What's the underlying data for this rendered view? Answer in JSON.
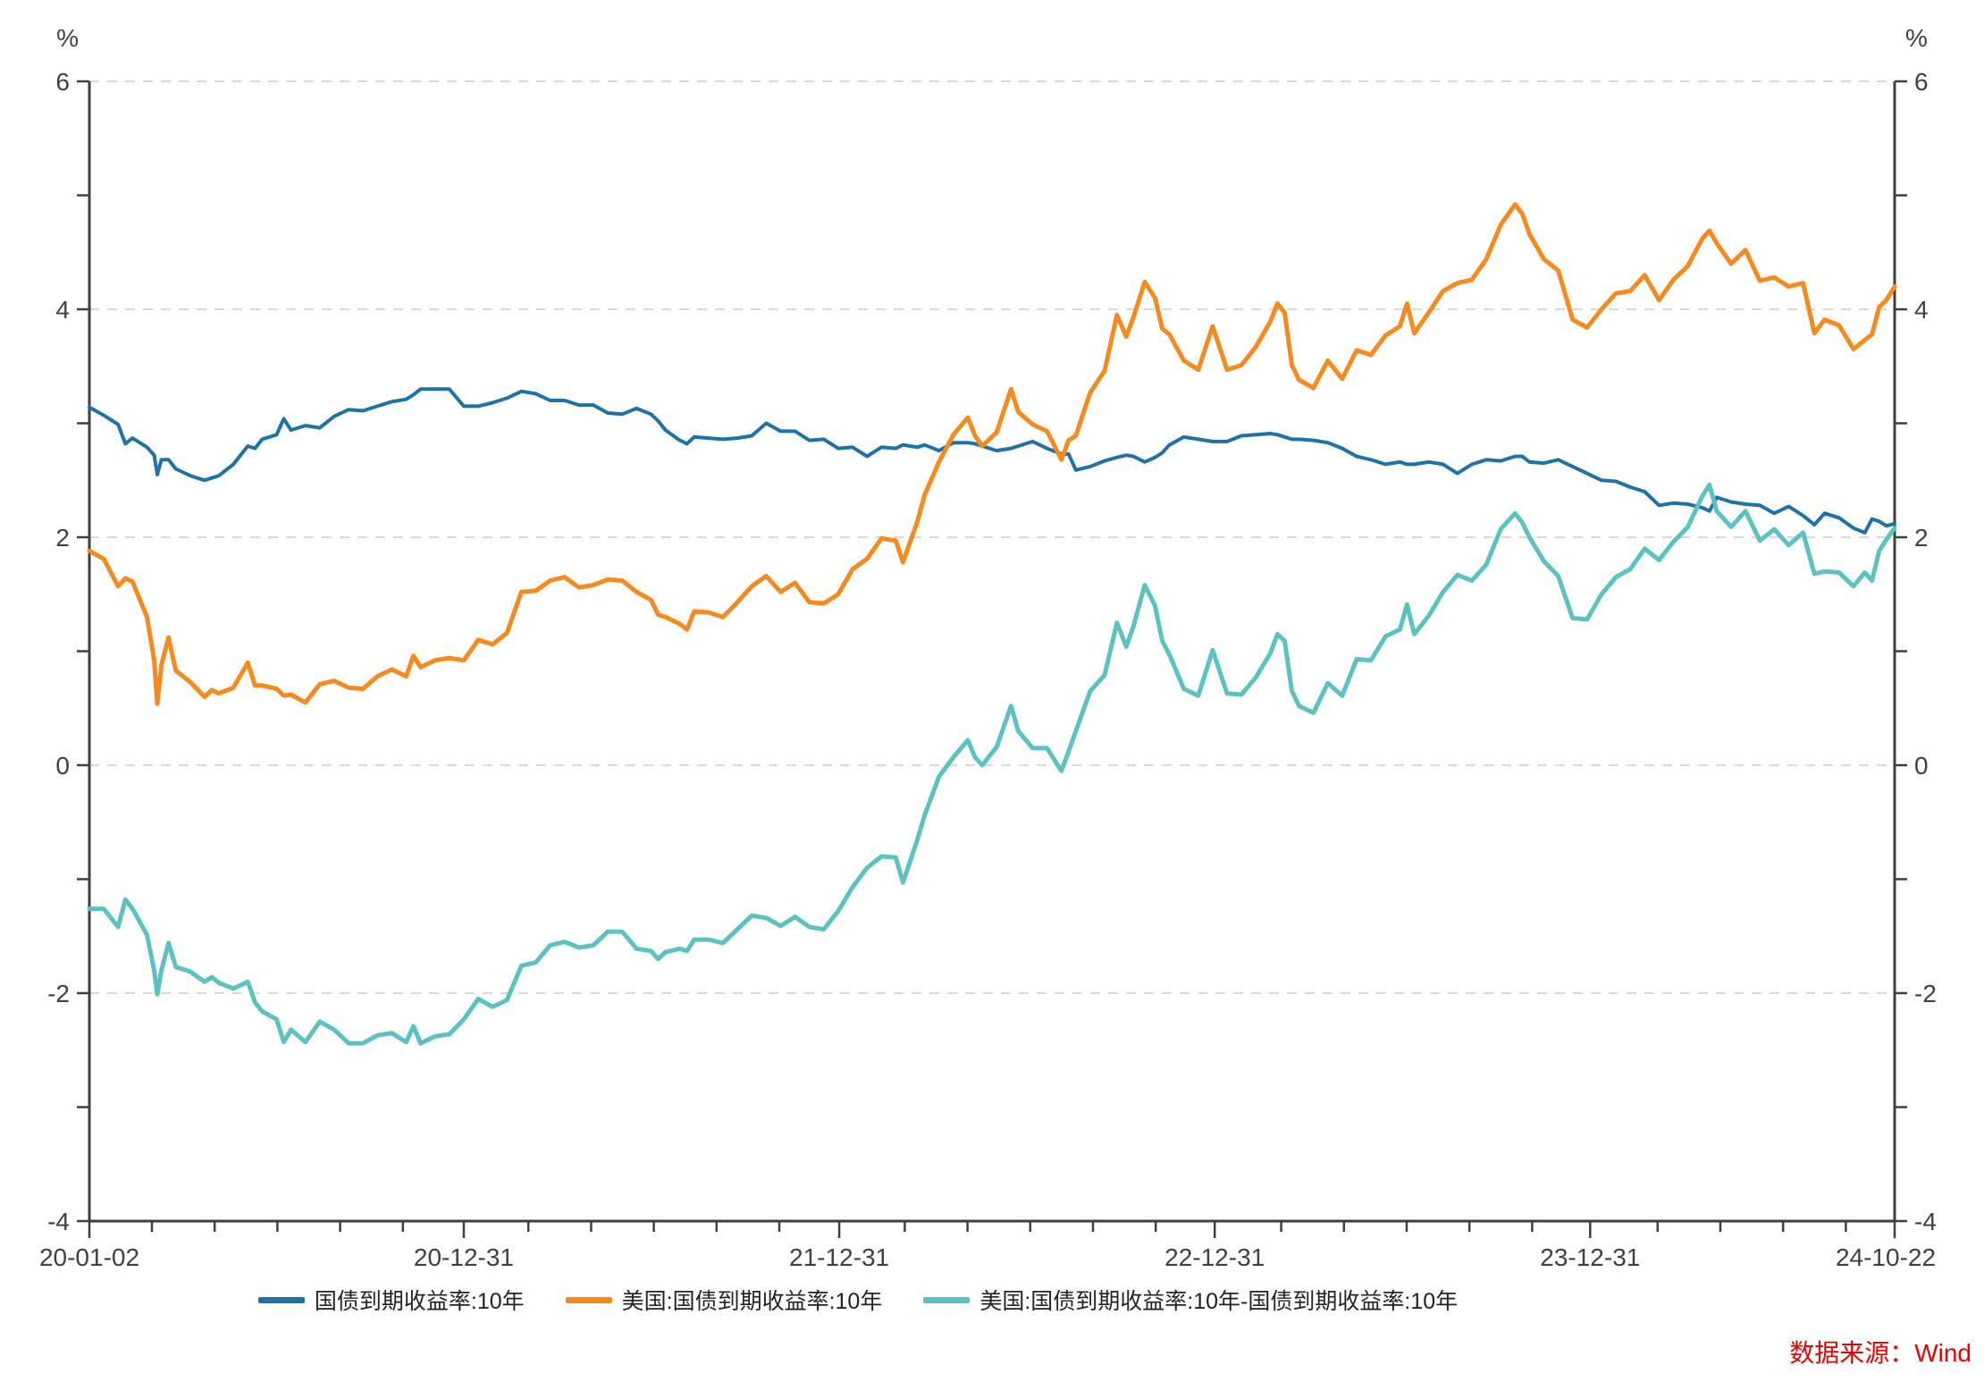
{
  "unit_label_left": "%",
  "unit_label_right": "%",
  "source_note": "数据来源：Wind",
  "chart_data": {
    "type": "line",
    "title": "",
    "ylabel": "%",
    "ylim": [
      -4,
      6
    ],
    "y_major_ticks": [
      6,
      4,
      2,
      0,
      -2,
      -4
    ],
    "grid": "horizontal dashed at major ticks",
    "legend_position": "bottom-center",
    "x_tick_labels": [
      "20-01-02",
      "20-12-31",
      "21-12-31",
      "22-12-31",
      "23-12-31",
      "24-10-22"
    ],
    "x_tick_days": [
      0,
      364,
      729,
      1094,
      1459,
      1755
    ],
    "x_domain_days": [
      0,
      1755
    ],
    "days": [
      0,
      14,
      28,
      35,
      42,
      56,
      63,
      66,
      70,
      77,
      84,
      98,
      112,
      119,
      126,
      140,
      154,
      161,
      168,
      182,
      189,
      196,
      210,
      224,
      238,
      252,
      266,
      280,
      294,
      308,
      315,
      322,
      336,
      350,
      364,
      378,
      392,
      406,
      420,
      434,
      448,
      462,
      476,
      490,
      504,
      518,
      532,
      546,
      553,
      560,
      574,
      581,
      588,
      602,
      616,
      630,
      644,
      658,
      672,
      686,
      700,
      714,
      728,
      742,
      756,
      770,
      784,
      791,
      805,
      812,
      826,
      840,
      854,
      861,
      868,
      882,
      896,
      903,
      917,
      931,
      945,
      952,
      959,
      973,
      987,
      999,
      1008,
      1015,
      1026,
      1036,
      1043,
      1050,
      1064,
      1078,
      1092,
      1106,
      1120,
      1134,
      1148,
      1155,
      1162,
      1169,
      1176,
      1190,
      1204,
      1218,
      1232,
      1246,
      1260,
      1274,
      1281,
      1288,
      1302,
      1316,
      1330,
      1344,
      1358,
      1372,
      1386,
      1393,
      1400,
      1414,
      1428,
      1442,
      1456,
      1470,
      1484,
      1498,
      1512,
      1526,
      1540,
      1554,
      1568,
      1575,
      1582,
      1596,
      1610,
      1624,
      1638,
      1652,
      1666,
      1677,
      1687,
      1701,
      1715,
      1726,
      1733,
      1740,
      1747,
      1755
    ],
    "series": [
      {
        "name": "国债到期收益率:10年",
        "color": "#1F72A6",
        "values": [
          3.14,
          3.07,
          2.99,
          2.82,
          2.87,
          2.79,
          2.72,
          2.55,
          2.68,
          2.68,
          2.6,
          2.54,
          2.5,
          2.52,
          2.54,
          2.64,
          2.8,
          2.78,
          2.86,
          2.9,
          3.04,
          2.94,
          2.98,
          2.96,
          3.06,
          3.12,
          3.11,
          3.15,
          3.19,
          3.21,
          3.25,
          3.3,
          3.3,
          3.3,
          3.15,
          3.15,
          3.18,
          3.22,
          3.28,
          3.26,
          3.2,
          3.2,
          3.16,
          3.16,
          3.09,
          3.08,
          3.13,
          3.08,
          3.02,
          2.94,
          2.85,
          2.82,
          2.88,
          2.87,
          2.86,
          2.87,
          2.89,
          3.0,
          2.93,
          2.93,
          2.85,
          2.86,
          2.78,
          2.79,
          2.71,
          2.79,
          2.78,
          2.81,
          2.79,
          2.81,
          2.76,
          2.83,
          2.83,
          2.82,
          2.8,
          2.76,
          2.78,
          2.8,
          2.84,
          2.78,
          2.73,
          2.73,
          2.59,
          2.62,
          2.67,
          2.7,
          2.72,
          2.71,
          2.66,
          2.7,
          2.74,
          2.81,
          2.88,
          2.86,
          2.84,
          2.84,
          2.89,
          2.9,
          2.91,
          2.9,
          2.88,
          2.86,
          2.86,
          2.85,
          2.83,
          2.78,
          2.71,
          2.68,
          2.64,
          2.66,
          2.64,
          2.64,
          2.66,
          2.64,
          2.56,
          2.64,
          2.68,
          2.67,
          2.71,
          2.71,
          2.66,
          2.65,
          2.68,
          2.62,
          2.56,
          2.5,
          2.49,
          2.44,
          2.4,
          2.28,
          2.3,
          2.29,
          2.26,
          2.23,
          2.35,
          2.31,
          2.29,
          2.28,
          2.21,
          2.27,
          2.19,
          2.11,
          2.21,
          2.17,
          2.08,
          2.04,
          2.16,
          2.14,
          2.1,
          2.12
        ]
      },
      {
        "name": "美国:国债到期收益率:10年",
        "color": "#F68A1E",
        "values": [
          1.88,
          1.81,
          1.57,
          1.64,
          1.61,
          1.3,
          0.92,
          0.54,
          0.88,
          1.12,
          0.83,
          0.73,
          0.6,
          0.66,
          0.63,
          0.68,
          0.9,
          0.7,
          0.7,
          0.67,
          0.61,
          0.62,
          0.55,
          0.71,
          0.74,
          0.68,
          0.67,
          0.78,
          0.84,
          0.78,
          0.96,
          0.86,
          0.92,
          0.94,
          0.92,
          1.1,
          1.06,
          1.16,
          1.52,
          1.53,
          1.62,
          1.65,
          1.56,
          1.58,
          1.63,
          1.62,
          1.52,
          1.45,
          1.32,
          1.3,
          1.24,
          1.19,
          1.35,
          1.34,
          1.3,
          1.43,
          1.57,
          1.66,
          1.52,
          1.6,
          1.43,
          1.42,
          1.5,
          1.72,
          1.81,
          1.99,
          1.97,
          1.78,
          2.14,
          2.37,
          2.66,
          2.9,
          3.05,
          2.89,
          2.8,
          2.92,
          3.3,
          3.1,
          2.99,
          2.93,
          2.68,
          2.85,
          2.89,
          3.27,
          3.46,
          3.95,
          3.76,
          3.93,
          4.24,
          4.1,
          3.83,
          3.78,
          3.55,
          3.47,
          3.85,
          3.47,
          3.51,
          3.67,
          3.89,
          4.05,
          3.97,
          3.51,
          3.38,
          3.31,
          3.55,
          3.39,
          3.64,
          3.6,
          3.77,
          3.85,
          4.05,
          3.79,
          3.97,
          4.16,
          4.23,
          4.26,
          4.44,
          4.74,
          4.92,
          4.84,
          4.66,
          4.44,
          4.34,
          3.91,
          3.84,
          4.0,
          4.14,
          4.16,
          4.3,
          4.08,
          4.26,
          4.38,
          4.62,
          4.69,
          4.58,
          4.4,
          4.52,
          4.25,
          4.28,
          4.2,
          4.23,
          3.79,
          3.91,
          3.86,
          3.65,
          3.73,
          3.78,
          4.02,
          4.08,
          4.2
        ]
      },
      {
        "name": "美国:国债到期收益率:10年-国债到期收益率:10年",
        "color": "#5CC2C1",
        "values": [
          -1.26,
          -1.26,
          -1.42,
          -1.18,
          -1.26,
          -1.49,
          -1.8,
          -2.01,
          -1.8,
          -1.56,
          -1.77,
          -1.81,
          -1.9,
          -1.86,
          -1.91,
          -1.96,
          -1.9,
          -2.08,
          -2.16,
          -2.23,
          -2.43,
          -2.32,
          -2.43,
          -2.25,
          -2.32,
          -2.44,
          -2.44,
          -2.37,
          -2.35,
          -2.43,
          -2.29,
          -2.44,
          -2.38,
          -2.36,
          -2.23,
          -2.05,
          -2.12,
          -2.06,
          -1.76,
          -1.73,
          -1.58,
          -1.55,
          -1.6,
          -1.58,
          -1.46,
          -1.46,
          -1.61,
          -1.63,
          -1.7,
          -1.64,
          -1.61,
          -1.63,
          -1.53,
          -1.53,
          -1.56,
          -1.44,
          -1.32,
          -1.34,
          -1.41,
          -1.33,
          -1.42,
          -1.44,
          -1.28,
          -1.07,
          -0.9,
          -0.8,
          -0.81,
          -1.03,
          -0.65,
          -0.44,
          -0.1,
          0.07,
          0.22,
          0.07,
          0.0,
          0.16,
          0.52,
          0.3,
          0.15,
          0.15,
          -0.05,
          0.12,
          0.3,
          0.65,
          0.79,
          1.25,
          1.04,
          1.22,
          1.58,
          1.4,
          1.09,
          0.97,
          0.67,
          0.61,
          1.01,
          0.63,
          0.62,
          0.77,
          0.98,
          1.15,
          1.09,
          0.65,
          0.52,
          0.46,
          0.72,
          0.61,
          0.93,
          0.92,
          1.13,
          1.19,
          1.41,
          1.15,
          1.31,
          1.52,
          1.67,
          1.62,
          1.76,
          2.07,
          2.21,
          2.13,
          2.0,
          1.79,
          1.66,
          1.29,
          1.28,
          1.5,
          1.65,
          1.72,
          1.9,
          1.8,
          1.96,
          2.09,
          2.36,
          2.46,
          2.23,
          2.09,
          2.23,
          1.97,
          2.07,
          1.93,
          2.04,
          1.68,
          1.7,
          1.69,
          1.57,
          1.69,
          1.62,
          1.88,
          1.98,
          2.08
        ]
      }
    ]
  }
}
